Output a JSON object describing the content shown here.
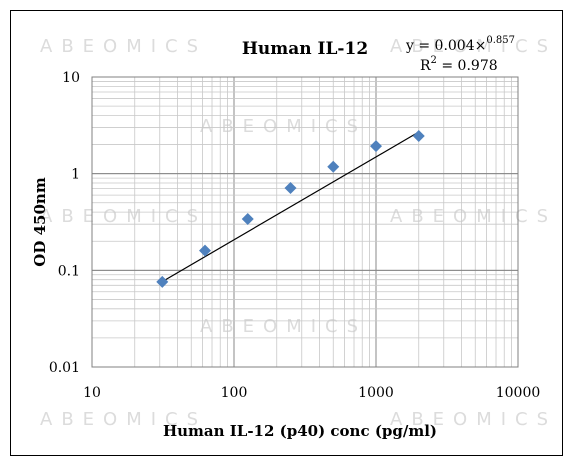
{
  "watermark": "ABEOMICS",
  "chart_data": {
    "type": "scatter",
    "title": "Human IL-12",
    "xlabel": "Human IL-12 (p40) conc (pg/ml)",
    "ylabel": "OD 450nm",
    "x_scale": "log",
    "y_scale": "log",
    "xlim": [
      10,
      10000
    ],
    "ylim": [
      0.01,
      10
    ],
    "x_ticks": [
      "10",
      "100",
      "1000",
      "10000"
    ],
    "y_ticks": [
      "0.01",
      "0.1",
      "1",
      "10"
    ],
    "grid": true,
    "series": [
      {
        "marker": "diamond",
        "color": "#4f81bd",
        "x": [
          31.25,
          62.5,
          125,
          250,
          500,
          1000,
          2000
        ],
        "y": [
          0.076,
          0.16,
          0.34,
          0.71,
          1.18,
          1.93,
          2.45
        ]
      }
    ],
    "trendline": {
      "type": "power",
      "coefficient": 0.004,
      "exponent": 0.857,
      "equation_prefix": "y = 0.004×",
      "equation_exponent": "0.857",
      "r2_prefix": "R",
      "r2_sup": "2",
      "r2_value": " = 0.978",
      "x_range": [
        31.25,
        2000
      ]
    }
  }
}
